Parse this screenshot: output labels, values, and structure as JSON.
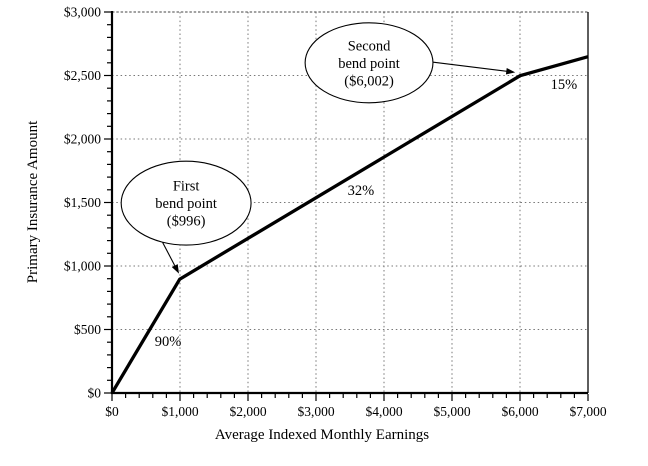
{
  "chart_data": {
    "type": "line",
    "title": "",
    "xlabel": "Average Indexed Monthly Earnings",
    "ylabel": "Primary Insurance Amount",
    "xlim": [
      0,
      7000
    ],
    "ylim": [
      0,
      3000
    ],
    "x_ticks": [
      0,
      1000,
      2000,
      3000,
      4000,
      5000,
      6000,
      7000
    ],
    "x_tick_labels": [
      "$0",
      "$1,000",
      "$2,000",
      "$3,000",
      "$4,000",
      "$5,000",
      "$6,000",
      "$7,000"
    ],
    "y_ticks": [
      0,
      500,
      1000,
      1500,
      2000,
      2500,
      3000
    ],
    "y_tick_labels": [
      "$0",
      "$500",
      "$1,000",
      "$1,500",
      "$2,000",
      "$2,500",
      "$3,000"
    ],
    "x_minor_step": 200,
    "y_minor_step": 100,
    "grid": "dotted",
    "legend": "none",
    "series": [
      {
        "name": "Primary Insurance Amount",
        "x": [
          0,
          996,
          6002,
          7000
        ],
        "y": [
          0,
          896.4,
          2498.32,
          2648.02
        ]
      }
    ],
    "bend_points": [
      {
        "aime": 996,
        "pia": 896.4
      },
      {
        "aime": 6002,
        "pia": 2498.32
      }
    ],
    "segment_rate_labels": [
      {
        "text": "90%",
        "x": 825,
        "y": 410
      },
      {
        "text": "32%",
        "x": 3660,
        "y": 1600
      },
      {
        "text": "15%",
        "x": 6645,
        "y": 2435
      }
    ],
    "annotations": [
      {
        "name": "first-bend-point-callout",
        "lines": [
          "First",
          "bend point",
          "($996)"
        ],
        "ellipse_center": [
          1090,
          1495
        ],
        "ellipse_rx": 955,
        "ellipse_ry": 330,
        "arrow_from": [
          745,
          1185
        ],
        "arrow_to": [
          985,
          940
        ]
      },
      {
        "name": "second-bend-point-callout",
        "lines": [
          "Second",
          "bend point",
          "($6,002)"
        ],
        "ellipse_center": [
          3780,
          2600
        ],
        "ellipse_rx": 940,
        "ellipse_ry": 315,
        "arrow_from": [
          4725,
          2605
        ],
        "arrow_to": [
          5930,
          2525
        ]
      }
    ]
  },
  "colors": {
    "background": "#ffffff",
    "line": "#000000",
    "grid": "#777777",
    "axis": "#000000",
    "top_border": "#444444",
    "right_border": "#1a1a1a",
    "text": "#000000"
  }
}
